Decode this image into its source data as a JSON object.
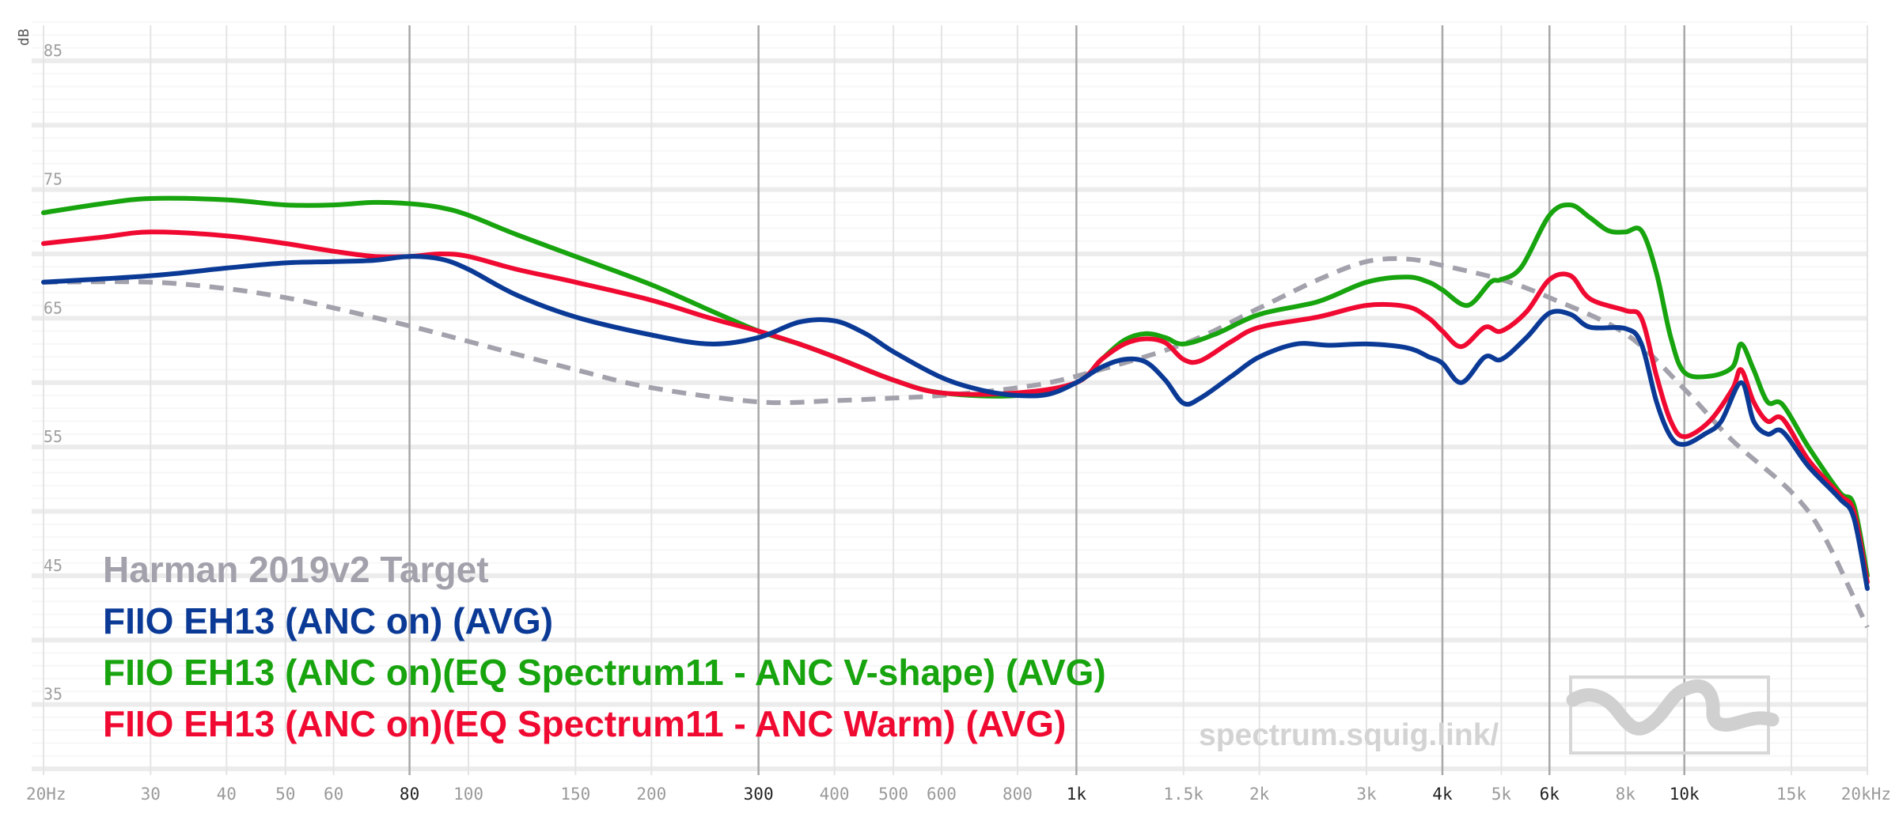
{
  "chart_data": {
    "type": "line",
    "x_scale": "log",
    "xlim": [
      20,
      20000
    ],
    "ylim": [
      30,
      88
    ],
    "ylabel": "dB",
    "y_ticks": [
      85,
      75,
      65,
      55,
      45,
      35
    ],
    "y_minor_ticks": [
      80,
      70,
      60,
      50,
      40
    ],
    "x_ticks": [
      {
        "value": 20,
        "label": "20Hz",
        "major": false
      },
      {
        "value": 30,
        "label": "30",
        "major": false
      },
      {
        "value": 40,
        "label": "40",
        "major": false
      },
      {
        "value": 50,
        "label": "50",
        "major": false
      },
      {
        "value": 60,
        "label": "60",
        "major": false
      },
      {
        "value": 80,
        "label": "80",
        "major": true
      },
      {
        "value": 100,
        "label": "100",
        "major": false
      },
      {
        "value": 150,
        "label": "150",
        "major": false
      },
      {
        "value": 200,
        "label": "200",
        "major": false
      },
      {
        "value": 300,
        "label": "300",
        "major": true
      },
      {
        "value": 400,
        "label": "400",
        "major": false
      },
      {
        "value": 500,
        "label": "500",
        "major": false
      },
      {
        "value": 600,
        "label": "600",
        "major": false
      },
      {
        "value": 800,
        "label": "800",
        "major": false
      },
      {
        "value": 1000,
        "label": "1k",
        "major": true
      },
      {
        "value": 1500,
        "label": "1.5k",
        "major": false
      },
      {
        "value": 2000,
        "label": "2k",
        "major": false
      },
      {
        "value": 3000,
        "label": "3k",
        "major": false
      },
      {
        "value": 4000,
        "label": "4k",
        "major": true
      },
      {
        "value": 5000,
        "label": "5k",
        "major": false
      },
      {
        "value": 6000,
        "label": "6k",
        "major": true
      },
      {
        "value": 8000,
        "label": "8k",
        "major": false
      },
      {
        "value": 10000,
        "label": "10k",
        "major": true
      },
      {
        "value": 15000,
        "label": "15k",
        "major": false
      },
      {
        "value": 20000,
        "label": "20kHz",
        "major": false
      }
    ],
    "grid": true,
    "legend_position": "bottom-left",
    "series": [
      {
        "name": "Harman 2019v2 Target",
        "color": "#a3a1ab",
        "dashed": true,
        "points": [
          [
            20,
            67.8
          ],
          [
            30,
            67.8
          ],
          [
            40,
            67.3
          ],
          [
            50,
            66.6
          ],
          [
            60,
            65.8
          ],
          [
            80,
            64.4
          ],
          [
            100,
            63.2
          ],
          [
            150,
            61.0
          ],
          [
            200,
            59.6
          ],
          [
            300,
            58.5
          ],
          [
            400,
            58.6
          ],
          [
            500,
            58.8
          ],
          [
            600,
            59.0
          ],
          [
            800,
            59.6
          ],
          [
            1000,
            60.5
          ],
          [
            1500,
            63.0
          ],
          [
            2000,
            65.8
          ],
          [
            2500,
            68.0
          ],
          [
            3000,
            69.4
          ],
          [
            3500,
            69.6
          ],
          [
            4000,
            69.1
          ],
          [
            5000,
            68.0
          ],
          [
            6000,
            66.6
          ],
          [
            8000,
            63.8
          ],
          [
            10000,
            59.5
          ],
          [
            12000,
            55.5
          ],
          [
            15000,
            51.5
          ],
          [
            17000,
            48.0
          ],
          [
            20000,
            41.0
          ]
        ]
      },
      {
        "name": "FIIO EH13 (ANC on) (AVG)",
        "color": "#0b3a96",
        "dashed": false,
        "points": [
          [
            20,
            67.8
          ],
          [
            30,
            68.3
          ],
          [
            40,
            68.9
          ],
          [
            50,
            69.3
          ],
          [
            60,
            69.4
          ],
          [
            70,
            69.5
          ],
          [
            80,
            69.8
          ],
          [
            90,
            69.6
          ],
          [
            100,
            68.8
          ],
          [
            120,
            66.8
          ],
          [
            150,
            65.1
          ],
          [
            200,
            63.7
          ],
          [
            250,
            63.0
          ],
          [
            300,
            63.5
          ],
          [
            350,
            64.7
          ],
          [
            400,
            64.8
          ],
          [
            450,
            63.8
          ],
          [
            500,
            62.4
          ],
          [
            600,
            60.4
          ],
          [
            700,
            59.4
          ],
          [
            800,
            59.0
          ],
          [
            900,
            59.1
          ],
          [
            1000,
            60.0
          ],
          [
            1100,
            61.2
          ],
          [
            1200,
            61.8
          ],
          [
            1300,
            61.6
          ],
          [
            1400,
            60.2
          ],
          [
            1500,
            58.4
          ],
          [
            1600,
            58.8
          ],
          [
            1800,
            60.5
          ],
          [
            2000,
            62.0
          ],
          [
            2300,
            63.0
          ],
          [
            2600,
            62.9
          ],
          [
            3000,
            63.0
          ],
          [
            3500,
            62.7
          ],
          [
            3800,
            62.0
          ],
          [
            4000,
            61.5
          ],
          [
            4300,
            60.0
          ],
          [
            4700,
            62.0
          ],
          [
            5000,
            61.8
          ],
          [
            5500,
            63.5
          ],
          [
            6000,
            65.4
          ],
          [
            6500,
            65.3
          ],
          [
            7000,
            64.3
          ],
          [
            8000,
            64.2
          ],
          [
            8500,
            63.0
          ],
          [
            9000,
            58.5
          ],
          [
            9500,
            55.8
          ],
          [
            10000,
            55.2
          ],
          [
            10800,
            56.0
          ],
          [
            11500,
            57.0
          ],
          [
            12400,
            60.0
          ],
          [
            13000,
            57.0
          ],
          [
            13700,
            56.0
          ],
          [
            14500,
            56.2
          ],
          [
            16000,
            53.5
          ],
          [
            18000,
            51.0
          ],
          [
            19000,
            49.5
          ],
          [
            20000,
            44.0
          ]
        ]
      },
      {
        "name": "FIIO EH13 (ANC on)(EQ Spectrum11 - ANC V-shape) (AVG)",
        "color": "#18a40e",
        "dashed": false,
        "points": [
          [
            20,
            73.2
          ],
          [
            25,
            73.9
          ],
          [
            30,
            74.3
          ],
          [
            40,
            74.2
          ],
          [
            50,
            73.8
          ],
          [
            60,
            73.8
          ],
          [
            70,
            74.0
          ],
          [
            80,
            73.9
          ],
          [
            90,
            73.6
          ],
          [
            100,
            73.0
          ],
          [
            120,
            71.5
          ],
          [
            150,
            69.8
          ],
          [
            200,
            67.6
          ],
          [
            250,
            65.6
          ],
          [
            300,
            64.0
          ],
          [
            350,
            63.0
          ],
          [
            400,
            62.0
          ],
          [
            500,
            60.2
          ],
          [
            600,
            59.2
          ],
          [
            800,
            59.0
          ],
          [
            1000,
            60.0
          ],
          [
            1100,
            61.8
          ],
          [
            1200,
            63.3
          ],
          [
            1300,
            63.8
          ],
          [
            1400,
            63.5
          ],
          [
            1500,
            63.0
          ],
          [
            1700,
            63.8
          ],
          [
            2000,
            65.3
          ],
          [
            2500,
            66.3
          ],
          [
            3000,
            67.8
          ],
          [
            3500,
            68.2
          ],
          [
            3800,
            67.8
          ],
          [
            4000,
            67.2
          ],
          [
            4400,
            66.0
          ],
          [
            4800,
            67.8
          ],
          [
            5000,
            68.0
          ],
          [
            5400,
            69.0
          ],
          [
            6000,
            73.0
          ],
          [
            6500,
            73.8
          ],
          [
            7000,
            72.8
          ],
          [
            7500,
            71.8
          ],
          [
            8000,
            71.7
          ],
          [
            8500,
            71.8
          ],
          [
            9000,
            68.5
          ],
          [
            9500,
            63.5
          ],
          [
            10000,
            60.8
          ],
          [
            11000,
            60.5
          ],
          [
            12000,
            61.2
          ],
          [
            12400,
            63.0
          ],
          [
            13000,
            61.0
          ],
          [
            13700,
            58.5
          ],
          [
            14500,
            58.3
          ],
          [
            16000,
            55.0
          ],
          [
            18000,
            51.5
          ],
          [
            19000,
            50.5
          ],
          [
            20000,
            45.0
          ]
        ]
      },
      {
        "name": "FIIO EH13 (ANC on)(EQ Spectrum11 - ANC Warm) (AVG)",
        "color": "#f00a32",
        "dashed": false,
        "points": [
          [
            20,
            70.8
          ],
          [
            25,
            71.3
          ],
          [
            30,
            71.7
          ],
          [
            40,
            71.4
          ],
          [
            50,
            70.8
          ],
          [
            60,
            70.2
          ],
          [
            70,
            69.8
          ],
          [
            80,
            69.8
          ],
          [
            90,
            70.0
          ],
          [
            100,
            69.8
          ],
          [
            120,
            68.8
          ],
          [
            150,
            67.8
          ],
          [
            200,
            66.4
          ],
          [
            250,
            65.0
          ],
          [
            300,
            64.0
          ],
          [
            350,
            63.0
          ],
          [
            400,
            62.0
          ],
          [
            500,
            60.2
          ],
          [
            600,
            59.2
          ],
          [
            800,
            59.2
          ],
          [
            1000,
            60.0
          ],
          [
            1100,
            61.8
          ],
          [
            1200,
            63.0
          ],
          [
            1300,
            63.4
          ],
          [
            1400,
            63.1
          ],
          [
            1500,
            61.8
          ],
          [
            1600,
            61.7
          ],
          [
            1800,
            63.2
          ],
          [
            2000,
            64.3
          ],
          [
            2500,
            65.1
          ],
          [
            3000,
            66.0
          ],
          [
            3500,
            65.9
          ],
          [
            3800,
            65.0
          ],
          [
            4000,
            64.0
          ],
          [
            4300,
            62.8
          ],
          [
            4700,
            64.3
          ],
          [
            5000,
            64.0
          ],
          [
            5500,
            65.5
          ],
          [
            6000,
            68.0
          ],
          [
            6500,
            68.3
          ],
          [
            7000,
            66.5
          ],
          [
            8000,
            65.6
          ],
          [
            8500,
            65.0
          ],
          [
            9000,
            60.5
          ],
          [
            9500,
            57.0
          ],
          [
            10000,
            55.8
          ],
          [
            11000,
            57.0
          ],
          [
            12000,
            59.5
          ],
          [
            12400,
            61.0
          ],
          [
            13000,
            58.5
          ],
          [
            13700,
            57.0
          ],
          [
            14500,
            57.2
          ],
          [
            16000,
            54.0
          ],
          [
            18000,
            51.3
          ],
          [
            19000,
            50.0
          ],
          [
            20000,
            44.5
          ]
        ]
      }
    ],
    "watermark": "spectrum.squig.link/"
  }
}
